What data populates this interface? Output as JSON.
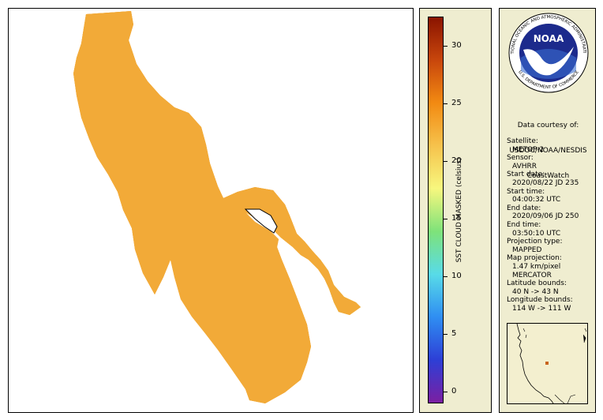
{
  "legend": {
    "title": "SST CLOUD MASKED (celsius)",
    "ticks": [
      {
        "value": 0,
        "label": "0"
      },
      {
        "value": 5,
        "label": "5"
      },
      {
        "value": 10,
        "label": "10"
      },
      {
        "value": 15,
        "label": "15"
      },
      {
        "value": 20,
        "label": "20"
      },
      {
        "value": 25,
        "label": "25"
      },
      {
        "value": 30,
        "label": "30"
      }
    ],
    "range": [
      -1,
      32.5
    ],
    "colormap": [
      "#7b1fa2",
      "#2d3fd6",
      "#2f8ef2",
      "#58dbe8",
      "#7ee27a",
      "#f7f77e",
      "#f6c24c",
      "#f28a12",
      "#c8460c",
      "#8a1400"
    ]
  },
  "map": {
    "data_color": "#f2aa38",
    "cool_color": "#e8ee82",
    "warm_tint": "#ec9a2c",
    "coast_color": "#000000"
  },
  "info": {
    "logo_text": "NOAA",
    "logo_ring_text": "NATIONAL OCEANIC AND ATMOSPHERIC ADMINISTRATION",
    "logo_ring_text_bottom": "U.S. DEPARTMENT OF COMMERCE",
    "courtesy": [
      "Data courtesy of:",
      "USDOC/NOAA/NESDIS",
      "CoastWatch"
    ],
    "fields": [
      {
        "label": "Satellite:",
        "value": "METOP-2"
      },
      {
        "label": "Sensor:",
        "value": "AVHRR"
      },
      {
        "label": "Start date:",
        "value": "2020/08/22 JD 235"
      },
      {
        "label": "Start time:",
        "value": "04:00:32 UTC"
      },
      {
        "label": "End date:",
        "value": "2020/09/06 JD 250"
      },
      {
        "label": "End time:",
        "value": "03:50:10 UTC"
      },
      {
        "label": "Projection type:",
        "value": "MAPPED"
      },
      {
        "label": "Map projection:",
        "value": "1.47 km/pixel"
      },
      {
        "label": "",
        "value": "MERCATOR"
      },
      {
        "label": "Latitude bounds:",
        "value": "40 N -> 43 N"
      },
      {
        "label": "Longitude bounds:",
        "value": "114 W -> 111 W"
      }
    ]
  },
  "inset": {
    "marker_color": "#c8641e"
  }
}
